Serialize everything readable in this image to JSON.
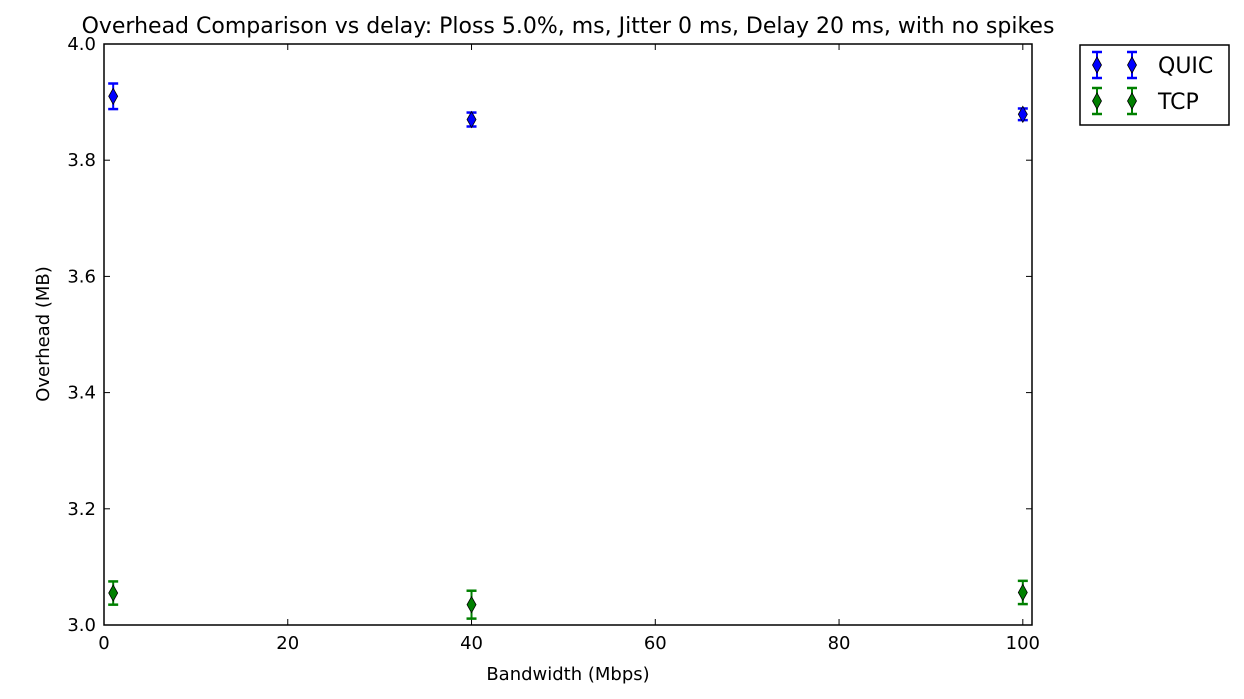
{
  "chart_data": {
    "type": "scatter",
    "title": "Overhead Comparison vs delay: Ploss 5.0%, ms, Jitter 0 ms, Delay 20 ms, with no spikes",
    "xlabel": "Bandwidth (Mbps)",
    "ylabel": "Overhead (MB)",
    "xlim": [
      0,
      101
    ],
    "ylim": [
      3.0,
      4.0
    ],
    "xticks": [
      0,
      20,
      40,
      60,
      80,
      100
    ],
    "yticks": [
      3.0,
      3.2,
      3.4,
      3.6,
      3.8,
      4.0
    ],
    "xtick_labels": [
      "0",
      "20",
      "40",
      "60",
      "80",
      "100"
    ],
    "ytick_labels": [
      "3.0",
      "3.2",
      "3.4",
      "3.6",
      "3.8",
      "4.0"
    ],
    "grid": false,
    "legend_position": "outside-top-right",
    "error_bars": true,
    "series": [
      {
        "name": "QUIC",
        "color": "#0000ff",
        "marker": "thin-diamond",
        "x": [
          1,
          40,
          100
        ],
        "y": [
          3.91,
          3.87,
          3.879
        ],
        "err": [
          0.022,
          0.012,
          0.01
        ]
      },
      {
        "name": "TCP",
        "color": "#008000",
        "marker": "thin-diamond",
        "x": [
          1,
          40,
          100
        ],
        "y": [
          3.055,
          3.035,
          3.056
        ],
        "err": [
          0.02,
          0.024,
          0.02
        ]
      }
    ]
  }
}
